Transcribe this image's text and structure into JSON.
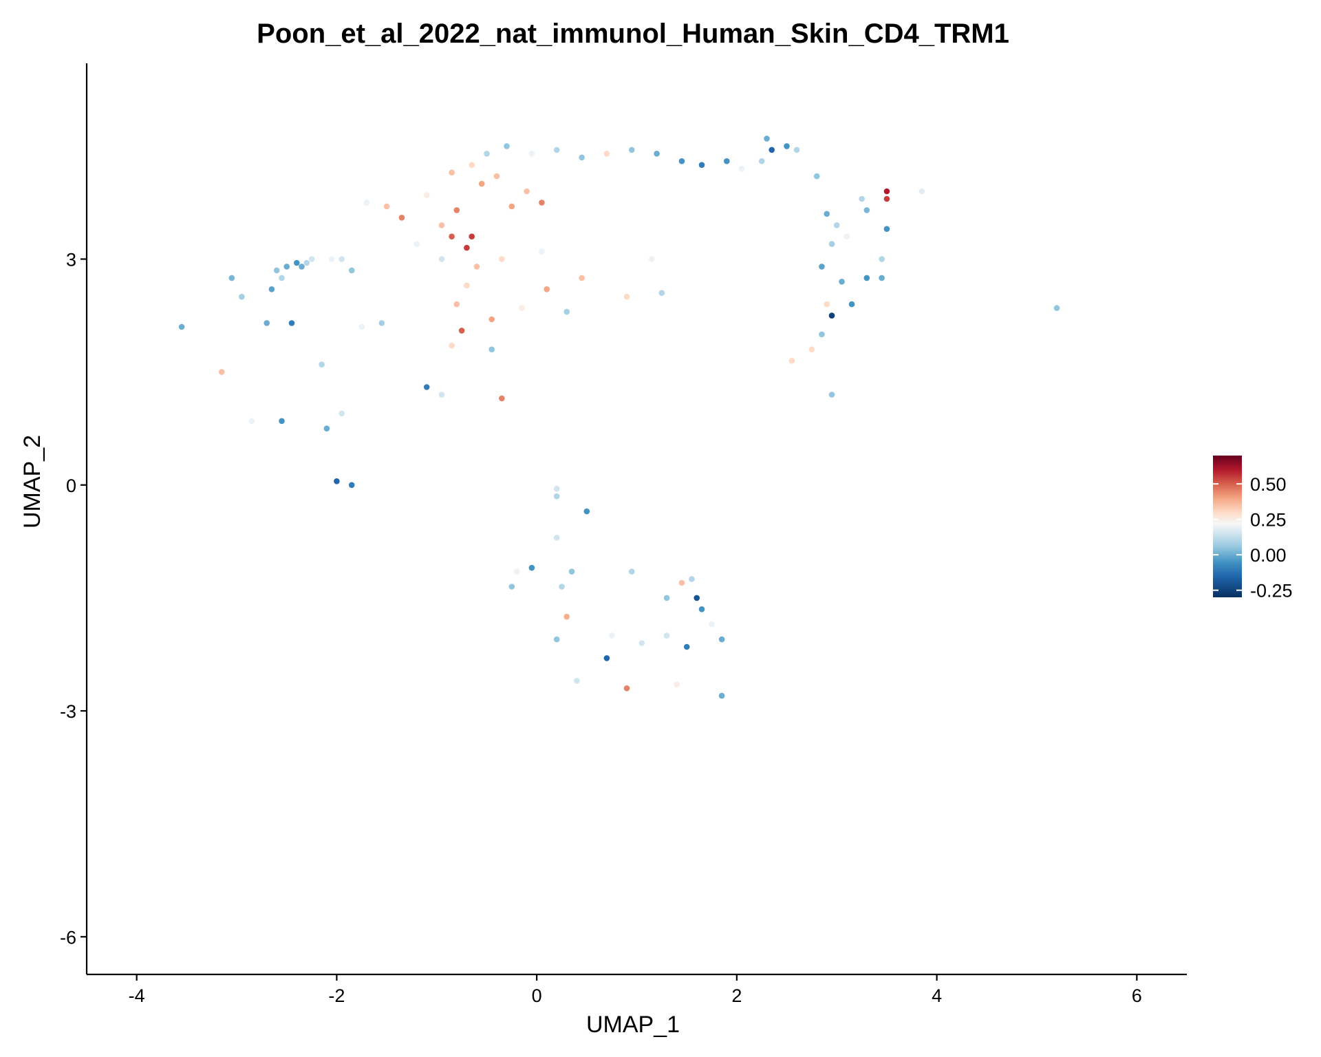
{
  "chart_data": {
    "type": "scatter",
    "title": "Poon_et_al_2022_nat_immunol_Human_Skin_CD4_TRM1",
    "xlabel": "UMAP_1",
    "ylabel": "UMAP_2",
    "xlim": [
      -4.5,
      6.5
    ],
    "ylim": [
      -6.5,
      5.6
    ],
    "x_ticks": [
      -4,
      -2,
      0,
      2,
      4,
      6
    ],
    "x_tick_labels": [
      "-4",
      "-2",
      "0",
      "2",
      "4",
      "6"
    ],
    "y_ticks": [
      -6,
      -3,
      0,
      3
    ],
    "y_tick_labels": [
      "-6",
      "-3",
      "0",
      "3"
    ],
    "grid": false,
    "legend_placement": "right",
    "color_scale": {
      "min": -0.3,
      "max": 0.7,
      "ticks": [
        -0.25,
        0.0,
        0.25,
        0.5
      ],
      "tick_labels": [
        "-0.25",
        "0.00",
        "0.25",
        "0.50"
      ],
      "stops": [
        {
          "value": -0.3,
          "color": "#053061"
        },
        {
          "value": -0.15,
          "color": "#2166ac"
        },
        {
          "value": -0.05,
          "color": "#4393c3"
        },
        {
          "value": 0.05,
          "color": "#92c5de"
        },
        {
          "value": 0.15,
          "color": "#d1e5f0"
        },
        {
          "value": 0.22,
          "color": "#f7f7f7"
        },
        {
          "value": 0.3,
          "color": "#fddbc7"
        },
        {
          "value": 0.4,
          "color": "#f4a582"
        },
        {
          "value": 0.5,
          "color": "#d6604d"
        },
        {
          "value": 0.6,
          "color": "#b2182b"
        },
        {
          "value": 0.7,
          "color": "#67001f"
        }
      ]
    },
    "series": [
      {
        "points": [
          [
            -3.55,
            2.1,
            0.0
          ],
          [
            -3.15,
            1.5,
            0.35
          ],
          [
            -3.05,
            2.75,
            0.02
          ],
          [
            -2.95,
            2.5,
            0.08
          ],
          [
            -2.85,
            0.85,
            0.2
          ],
          [
            -2.7,
            2.15,
            0.0
          ],
          [
            -2.65,
            2.6,
            -0.02
          ],
          [
            -2.6,
            2.85,
            0.05
          ],
          [
            -2.55,
            2.75,
            0.1
          ],
          [
            -2.5,
            2.9,
            0.0
          ],
          [
            -2.45,
            2.15,
            -0.1
          ],
          [
            -2.4,
            2.95,
            -0.05
          ],
          [
            -2.35,
            2.9,
            0.0
          ],
          [
            -2.3,
            2.95,
            0.1
          ],
          [
            -2.25,
            3.0,
            0.15
          ],
          [
            -2.15,
            1.6,
            0.1
          ],
          [
            -2.05,
            3.0,
            0.2
          ],
          [
            -1.95,
            3.0,
            0.15
          ],
          [
            -1.85,
            2.85,
            0.05
          ],
          [
            -1.75,
            2.1,
            0.2
          ],
          [
            -1.55,
            2.15,
            0.08
          ],
          [
            -2.55,
            0.85,
            -0.05
          ],
          [
            -2.1,
            0.75,
            0.0
          ],
          [
            -1.95,
            0.95,
            0.15
          ],
          [
            -2.0,
            0.05,
            -0.15
          ],
          [
            -1.85,
            0.0,
            -0.1
          ],
          [
            -1.1,
            1.3,
            -0.1
          ],
          [
            -0.95,
            1.2,
            0.15
          ],
          [
            5.2,
            2.35,
            0.05
          ],
          [
            3.85,
            3.9,
            0.18
          ],
          [
            3.5,
            3.9,
            0.6
          ],
          [
            3.5,
            3.8,
            0.55
          ],
          [
            3.5,
            3.4,
            -0.05
          ],
          [
            3.45,
            2.75,
            0.0
          ],
          [
            3.45,
            3.0,
            0.1
          ],
          [
            3.3,
            2.75,
            -0.05
          ],
          [
            3.3,
            3.65,
            0.02
          ],
          [
            3.25,
            3.8,
            0.1
          ],
          [
            2.95,
            1.2,
            0.05
          ],
          [
            2.95,
            2.25,
            -0.25
          ],
          [
            2.9,
            2.4,
            0.3
          ],
          [
            2.75,
            1.8,
            0.3
          ],
          [
            3.05,
            2.7,
            0.0
          ],
          [
            3.15,
            2.4,
            -0.05
          ],
          [
            3.0,
            3.45,
            0.1
          ],
          [
            3.1,
            3.3,
            0.2
          ],
          [
            2.8,
            4.1,
            0.05
          ],
          [
            2.9,
            3.6,
            0.0
          ],
          [
            2.95,
            3.2,
            0.08
          ],
          [
            2.85,
            2.9,
            -0.02
          ],
          [
            0.9,
            -2.7,
            0.45
          ],
          [
            1.3,
            -2.0,
            0.15
          ],
          [
            1.85,
            -2.8,
            0.0
          ],
          [
            1.75,
            -1.85,
            0.2
          ],
          [
            1.65,
            -1.65,
            -0.05
          ],
          [
            1.6,
            -1.5,
            -0.2
          ],
          [
            1.55,
            -1.25,
            0.1
          ],
          [
            1.3,
            -1.5,
            0.05
          ],
          [
            1.45,
            -1.3,
            0.35
          ],
          [
            0.95,
            -1.15,
            0.1
          ],
          [
            0.5,
            -0.35,
            -0.05
          ],
          [
            0.2,
            -0.7,
            0.15
          ],
          [
            -0.05,
            -1.1,
            -0.05
          ],
          [
            -0.25,
            -1.35,
            0.05
          ],
          [
            0.25,
            -1.35,
            0.1
          ],
          [
            0.35,
            -1.15,
            0.05
          ],
          [
            0.3,
            -1.75,
            0.38
          ],
          [
            0.2,
            -2.05,
            0.05
          ],
          [
            0.75,
            -2.0,
            0.2
          ],
          [
            0.7,
            -2.3,
            -0.15
          ],
          [
            1.5,
            -2.15,
            -0.1
          ],
          [
            0.4,
            -2.6,
            0.15
          ],
          [
            1.4,
            -2.65,
            0.25
          ],
          [
            0.2,
            -0.05,
            0.15
          ],
          [
            0.2,
            -0.15,
            0.1
          ],
          [
            -0.2,
            -1.15,
            0.2
          ],
          [
            1.85,
            -2.05,
            0.0
          ],
          [
            1.05,
            -2.1,
            0.15
          ],
          [
            2.85,
            2.0,
            0.05
          ],
          [
            2.55,
            1.65,
            0.3
          ],
          [
            1.25,
            2.55,
            0.1
          ],
          [
            1.15,
            3.0,
            0.2
          ],
          [
            0.9,
            2.5,
            0.3
          ],
          [
            0.45,
            2.75,
            0.35
          ],
          [
            0.3,
            2.3,
            0.08
          ],
          [
            0.1,
            2.6,
            0.4
          ],
          [
            0.05,
            3.1,
            0.2
          ],
          [
            -0.15,
            2.35,
            0.25
          ],
          [
            -0.35,
            3.0,
            0.3
          ],
          [
            -0.45,
            2.2,
            0.4
          ],
          [
            -0.6,
            2.9,
            0.35
          ],
          [
            -0.7,
            2.65,
            0.3
          ],
          [
            -0.8,
            2.4,
            0.35
          ],
          [
            -0.85,
            1.85,
            0.3
          ],
          [
            -0.75,
            2.05,
            0.5
          ],
          [
            -0.35,
            1.15,
            0.45
          ],
          [
            -0.45,
            1.8,
            0.05
          ],
          [
            -0.95,
            3.0,
            0.15
          ],
          [
            -0.8,
            3.65,
            0.45
          ],
          [
            -0.65,
            3.3,
            0.55
          ],
          [
            -0.85,
            3.3,
            0.5
          ],
          [
            -0.7,
            3.15,
            0.55
          ],
          [
            -0.55,
            4.0,
            0.4
          ],
          [
            -0.4,
            4.1,
            0.35
          ],
          [
            -0.25,
            3.7,
            0.4
          ],
          [
            -0.1,
            3.9,
            0.35
          ],
          [
            0.05,
            3.75,
            0.45
          ],
          [
            -0.85,
            4.15,
            0.35
          ],
          [
            -0.65,
            4.25,
            0.3
          ],
          [
            -0.5,
            4.4,
            0.1
          ],
          [
            -0.3,
            4.5,
            0.05
          ],
          [
            -0.05,
            4.4,
            0.2
          ],
          [
            0.2,
            4.45,
            0.1
          ],
          [
            0.45,
            4.35,
            0.05
          ],
          [
            0.7,
            4.4,
            0.3
          ],
          [
            0.95,
            4.45,
            0.05
          ],
          [
            1.2,
            4.4,
            0.0
          ],
          [
            1.45,
            4.3,
            -0.05
          ],
          [
            1.65,
            4.25,
            -0.1
          ],
          [
            1.9,
            4.3,
            -0.05
          ],
          [
            2.05,
            4.2,
            0.2
          ],
          [
            2.25,
            4.3,
            0.1
          ],
          [
            2.3,
            4.6,
            0.0
          ],
          [
            2.35,
            4.45,
            -0.15
          ],
          [
            2.5,
            4.5,
            -0.05
          ],
          [
            2.6,
            4.45,
            0.1
          ],
          [
            -1.7,
            3.75,
            0.2
          ],
          [
            -1.5,
            3.7,
            0.35
          ],
          [
            -1.1,
            3.85,
            0.25
          ],
          [
            -1.35,
            3.55,
            0.45
          ],
          [
            -1.2,
            3.2,
            0.2
          ],
          [
            -0.95,
            3.45,
            0.35
          ]
        ]
      }
    ]
  }
}
